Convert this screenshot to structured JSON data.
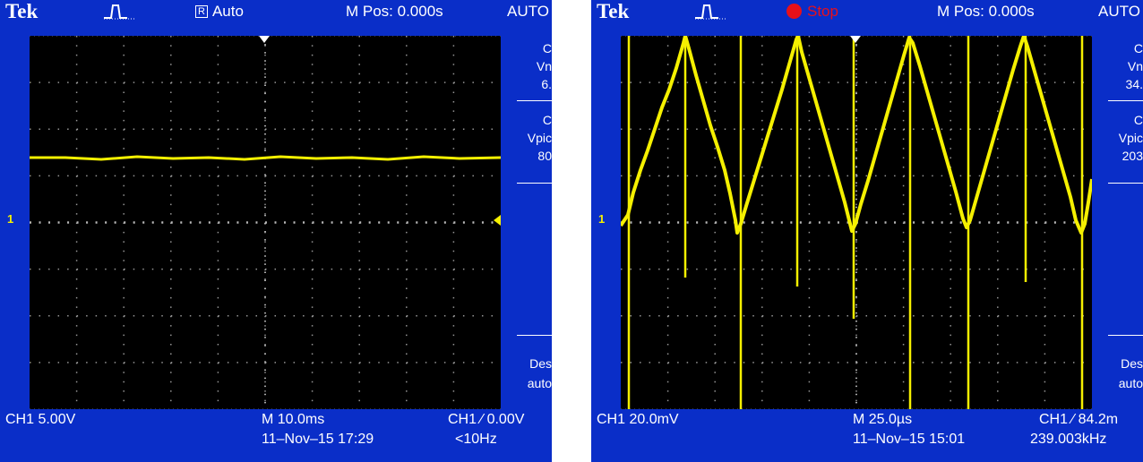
{
  "left_scope": {
    "brand": "Tek",
    "trigger_state": "Auto",
    "trigger_state_icon": "R",
    "m_pos": "M Pos: 0.000s",
    "mode": "AUTO",
    "measurements": {
      "m1_label": "C",
      "m1_name": "Vn",
      "m1_value": "6.",
      "m2_label": "C",
      "m2_name": "Vpic",
      "m2_value": "80"
    },
    "menu": {
      "title": "Des",
      "value": "auto"
    },
    "ch_marker": "1",
    "channel_scale": "CH1  5.00V",
    "timebase": "M 10.0ms",
    "datetime": "11–Nov–15 17:29",
    "trigger_info": "CH1 ∕ 0.00V",
    "frequency": "<10Hz",
    "colors": {
      "frame": "#0a2ec8",
      "trace": "#f5f000",
      "screen": "#000000"
    }
  },
  "right_scope": {
    "brand": "Tek",
    "trigger_state": "Stop",
    "m_pos": "M Pos: 0.000s",
    "mode": "AUTO",
    "measurements": {
      "m1_label": "C",
      "m1_name": "Vn",
      "m1_value": "34.",
      "m2_label": "C",
      "m2_name": "Vpic",
      "m2_value": "203"
    },
    "menu": {
      "title": "Des",
      "value": "auto"
    },
    "ch_marker": "1",
    "channel_scale": "CH1  20.0mV",
    "timebase": "M 25.0µs",
    "datetime": "11–Nov–15 15:01",
    "trigger_info": "CH1 ∕ 84.2m",
    "frequency": "239.003kHz",
    "colors": {
      "frame": "#0a2ec8",
      "trace": "#f5f000",
      "screen": "#000000",
      "stop": "#e8101a"
    }
  }
}
